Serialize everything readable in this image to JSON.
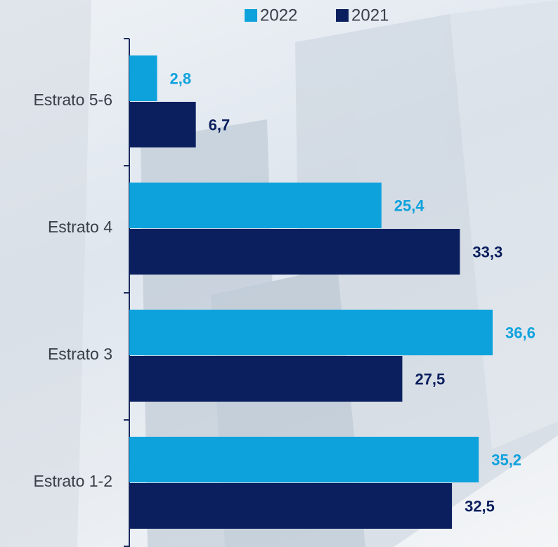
{
  "chart_data": {
    "type": "bar",
    "orientation": "horizontal",
    "categories": [
      "Estrato 5-6",
      "Estrato 4",
      "Estrato 3",
      "Estrato 1-2"
    ],
    "series": [
      {
        "name": "2022",
        "color": "#0ea2dd",
        "values": [
          2.8,
          25.4,
          36.6,
          35.2
        ],
        "value_labels": [
          "2,8",
          "25,4",
          "36,6",
          "35,2"
        ]
      },
      {
        "name": "2021",
        "color": "#0b1f5e",
        "values": [
          6.7,
          33.3,
          27.5,
          32.5
        ],
        "value_labels": [
          "6,7",
          "33,3",
          "27,5",
          "32,5"
        ]
      }
    ],
    "legend": "top"
  }
}
